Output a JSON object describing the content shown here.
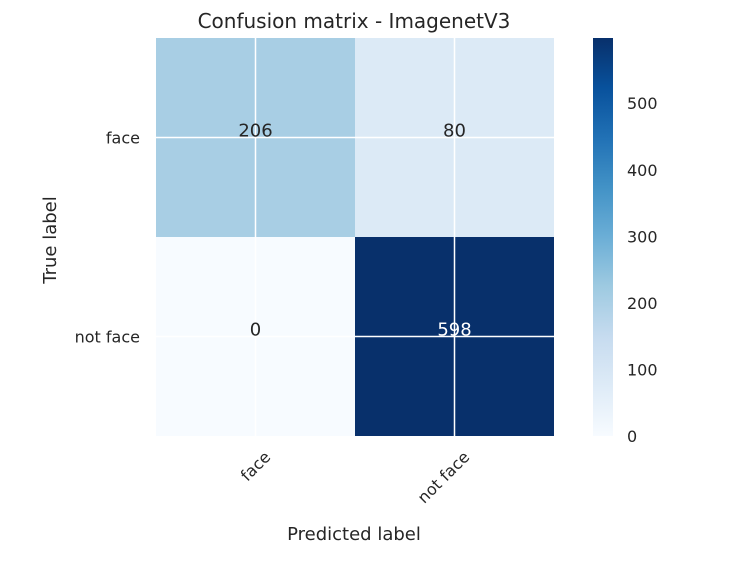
{
  "chart_data": {
    "type": "heatmap",
    "title": "Confusion matrix - ImagenetV3",
    "xlabel": "Predicted label",
    "ylabel": "True label",
    "x_categories": [
      "face",
      "not face"
    ],
    "y_categories": [
      "face",
      "not face"
    ],
    "values": [
      [
        206,
        80
      ],
      [
        0,
        598
      ]
    ],
    "colormap": "Blues",
    "colorbar": {
      "min": 0,
      "max": 598,
      "ticks": [
        0,
        100,
        200,
        300,
        400,
        500
      ]
    },
    "grid": true
  }
}
